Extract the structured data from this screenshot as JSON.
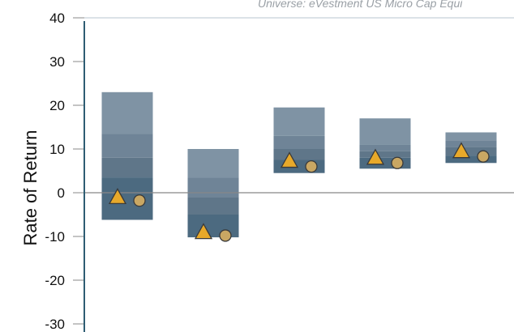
{
  "chart_data": {
    "type": "floating-bar-range",
    "subtitle": "Universe: eVestment US Micro Cap Equi",
    "ylabel": "Rate of Return",
    "ylim": [
      -30,
      40
    ],
    "yticks": [
      40,
      30,
      20,
      10,
      0,
      -10,
      -20,
      -30
    ],
    "ytick_labels": [
      "40",
      "30",
      "20",
      "10",
      "0",
      "-10",
      "-20",
      "-30"
    ],
    "grid": false,
    "groups": [
      {
        "bands": [
          23.0,
          13.5,
          8.0,
          3.5,
          -6.2
        ],
        "triangle": -1.0,
        "circle": -1.8
      },
      {
        "bands": [
          10.0,
          3.5,
          -1.0,
          -5.0,
          -10.2
        ],
        "triangle": -9.0,
        "circle": -9.8
      },
      {
        "bands": [
          19.5,
          13.0,
          10.0,
          7.5,
          4.5
        ],
        "triangle": 7.3,
        "circle": 6.0
      },
      {
        "bands": [
          17.0,
          11.0,
          9.5,
          8.0,
          5.5
        ],
        "triangle": 8.0,
        "circle": 6.8
      },
      {
        "bands": [
          13.8,
          12.0,
          10.5,
          8.5,
          6.8
        ],
        "triangle": 9.5,
        "circle": 8.3
      }
    ],
    "colors": {
      "band_shades": [
        "#7f93a4",
        "#6f8497",
        "#5f7689",
        "#4c6a80"
      ],
      "triangle": "#e8a92a",
      "circle": "#c9a763",
      "axis": "#2e5d73",
      "zero_line": "#888888",
      "marker_edge": "#3a3a3a"
    }
  }
}
